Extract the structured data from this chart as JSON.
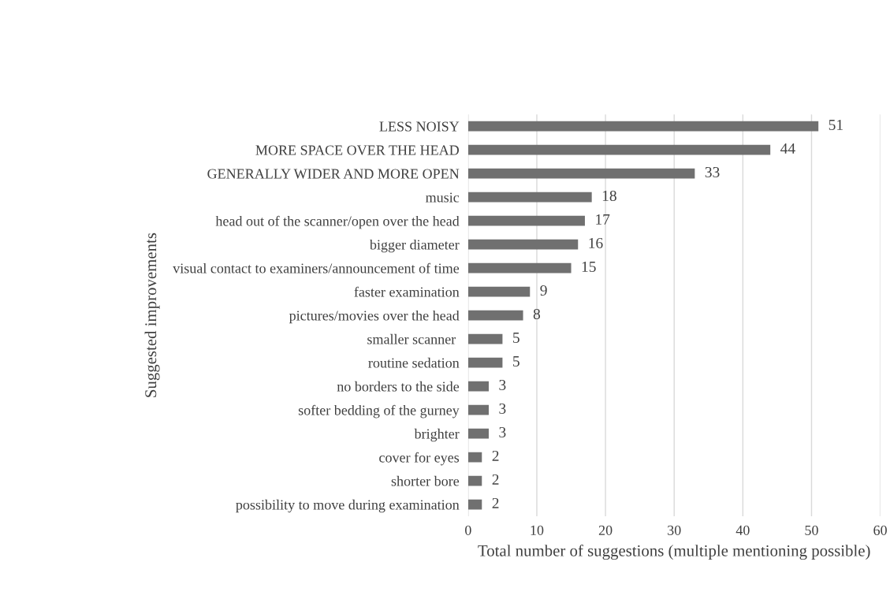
{
  "chart_data": {
    "type": "bar",
    "orientation": "horizontal",
    "xlabel": "Total number of suggestions (multiple mentioning possible)",
    "ylabel": "Suggested improvements",
    "categories": [
      "LESS NOISY",
      "MORE SPACE OVER THE HEAD",
      "GENERALLY WIDER AND MORE OPEN",
      "music",
      "head out of the scanner/open over the head",
      "bigger diameter",
      "visual contact to examiners/announcement of time",
      "faster examination",
      "pictures/movies over the head",
      "smaller scanner ",
      "routine sedation",
      "no borders to the side",
      "softer bedding of the gurney",
      "brighter",
      "cover for eyes",
      "shorter bore",
      "possibility to move during examination"
    ],
    "values": [
      51,
      44,
      33,
      18,
      17,
      16,
      15,
      9,
      8,
      5,
      5,
      3,
      3,
      3,
      2,
      2,
      2
    ],
    "color": "#707070",
    "xlim": [
      0,
      60
    ],
    "xticks": [
      0,
      10,
      20,
      30,
      40,
      50,
      60
    ],
    "grid": "x",
    "data_labels": true
  }
}
